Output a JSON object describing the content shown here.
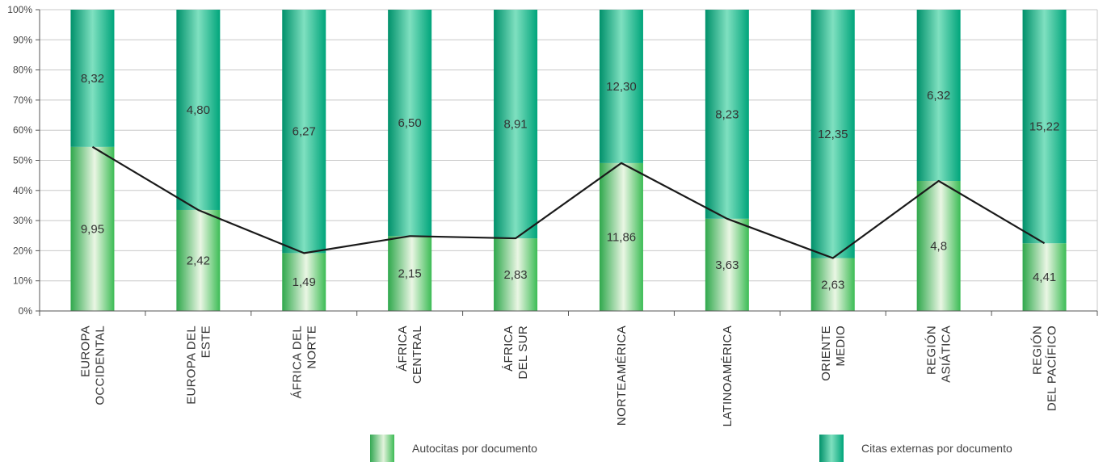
{
  "chart_data": {
    "type": "bar",
    "stacked": true,
    "percent": true,
    "categories": [
      [
        "EUROPA",
        "OCCIDENTAL"
      ],
      [
        "EUROPA DEL",
        "ESTE"
      ],
      [
        "ÁFRICA DEL",
        "NORTE"
      ],
      [
        "ÁFRICA",
        "CENTRAL"
      ],
      [
        "ÁFRICA",
        "DEL SUR"
      ],
      [
        "NORTEAMÉRICA"
      ],
      [
        "LATINOAMÉRICA"
      ],
      [
        "ORIENTE",
        "MEDIO"
      ],
      [
        "REGIÓN",
        "ASIÁTICA"
      ],
      [
        "REGIÓN",
        "DEL PACÍFICO"
      ]
    ],
    "series": [
      {
        "name": "Autocitas por documento",
        "values": [
          9.95,
          2.42,
          1.49,
          2.15,
          2.83,
          11.86,
          3.63,
          2.63,
          4.8,
          4.41
        ],
        "labels": [
          "9,95",
          "2,42",
          "1,49",
          "2,15",
          "2,83",
          "11,86",
          "3,63",
          "2,63",
          "4,8",
          "4,41"
        ],
        "color": "#3dbb55"
      },
      {
        "name": "Citas externas por documento",
        "values": [
          8.32,
          4.8,
          6.27,
          6.5,
          8.91,
          12.3,
          8.23,
          12.35,
          6.32,
          15.22
        ],
        "labels": [
          "8,32",
          "4,80",
          "6,27",
          "6,50",
          "8,91",
          "12,30",
          "8,23",
          "12,35",
          "6,32",
          "15,22"
        ],
        "color": "#00a57a"
      }
    ],
    "line": {
      "connects": "top of Autocitas segment",
      "color": "#1a1a1a"
    },
    "yticks": [
      "0%",
      "10%",
      "20%",
      "30%",
      "40%",
      "50%",
      "60%",
      "70%",
      "80%",
      "90%",
      "100%"
    ],
    "ylim": [
      0,
      100
    ],
    "grid": true,
    "legend_position": "bottom"
  },
  "legend": {
    "auto_label": "Autocitas por documento",
    "ext_label": "Citas externas por documento"
  }
}
